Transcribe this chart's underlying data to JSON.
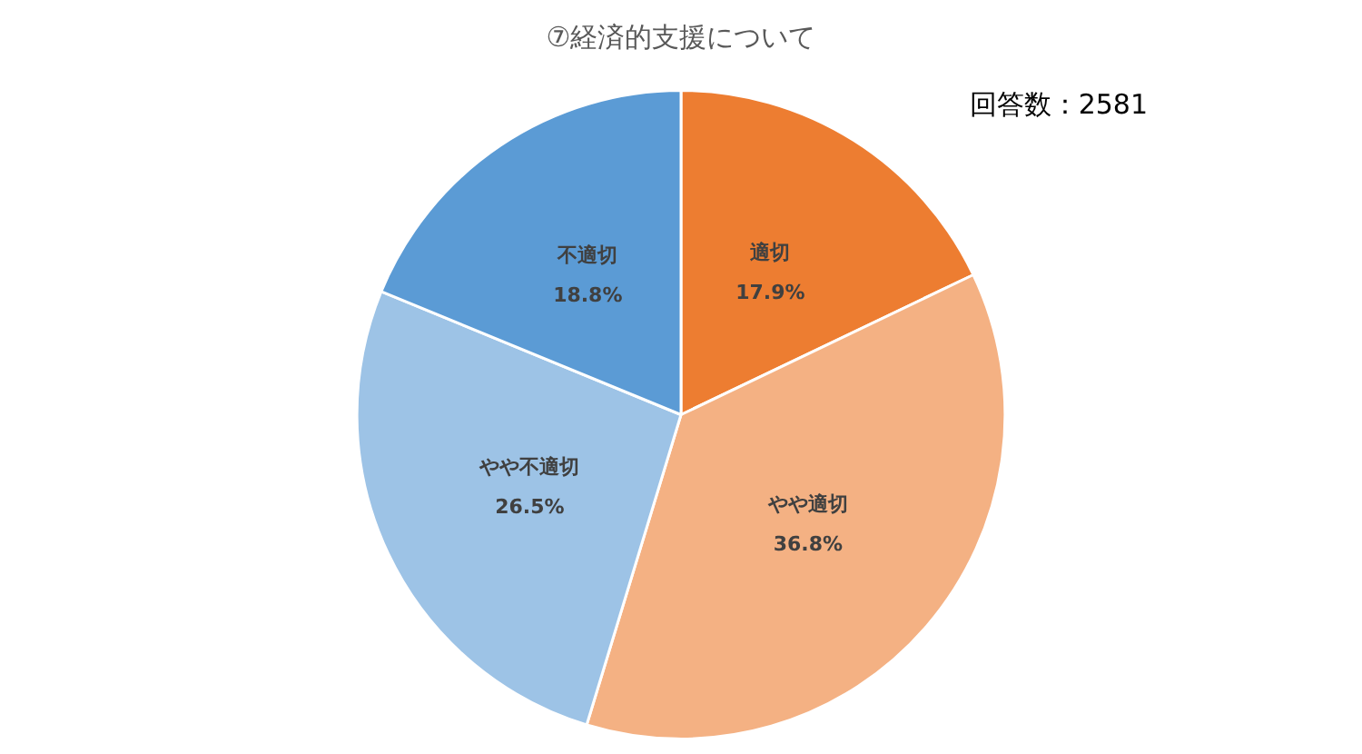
{
  "chart_data": {
    "type": "pie",
    "title": "⑦経済的支援について",
    "categories": [
      "適切",
      "やや適切",
      "やや不適切",
      "不適切"
    ],
    "values": [
      17.9,
      36.8,
      26.5,
      18.8
    ],
    "value_labels": [
      "17.9%",
      "36.8%",
      "26.5%",
      "18.8%"
    ],
    "colors": [
      "#ed7d31",
      "#f4b183",
      "#9dc3e6",
      "#5b9bd5"
    ],
    "annotations": [
      "回答数：2581"
    ],
    "legend": false
  }
}
